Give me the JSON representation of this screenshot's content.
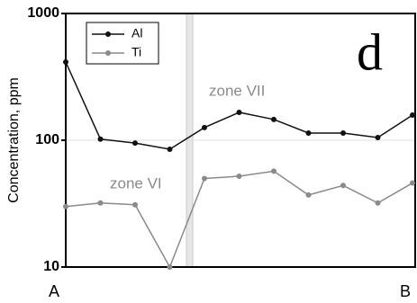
{
  "chart_data": {
    "type": "line",
    "categories": [
      "A",
      null,
      null,
      null,
      null,
      null,
      null,
      null,
      null,
      null,
      "B"
    ],
    "series": [
      {
        "name": "Al",
        "color": "#111111",
        "values": [
          414,
          102,
          95,
          85,
          126,
          166,
          146,
          114,
          114,
          105,
          158
        ]
      },
      {
        "name": "Ti",
        "color": "#8a8a8a",
        "values": [
          30,
          32,
          31,
          10,
          50,
          52,
          57,
          37,
          44,
          32,
          46
        ]
      }
    ],
    "ylabel": "Concentration, ppm",
    "ylim": [
      10,
      1000
    ],
    "yticks": [
      10,
      100,
      1000
    ],
    "log_y": true,
    "annotations": [
      "zone VII",
      "zone VI",
      "d"
    ],
    "legend": "upper left"
  }
}
